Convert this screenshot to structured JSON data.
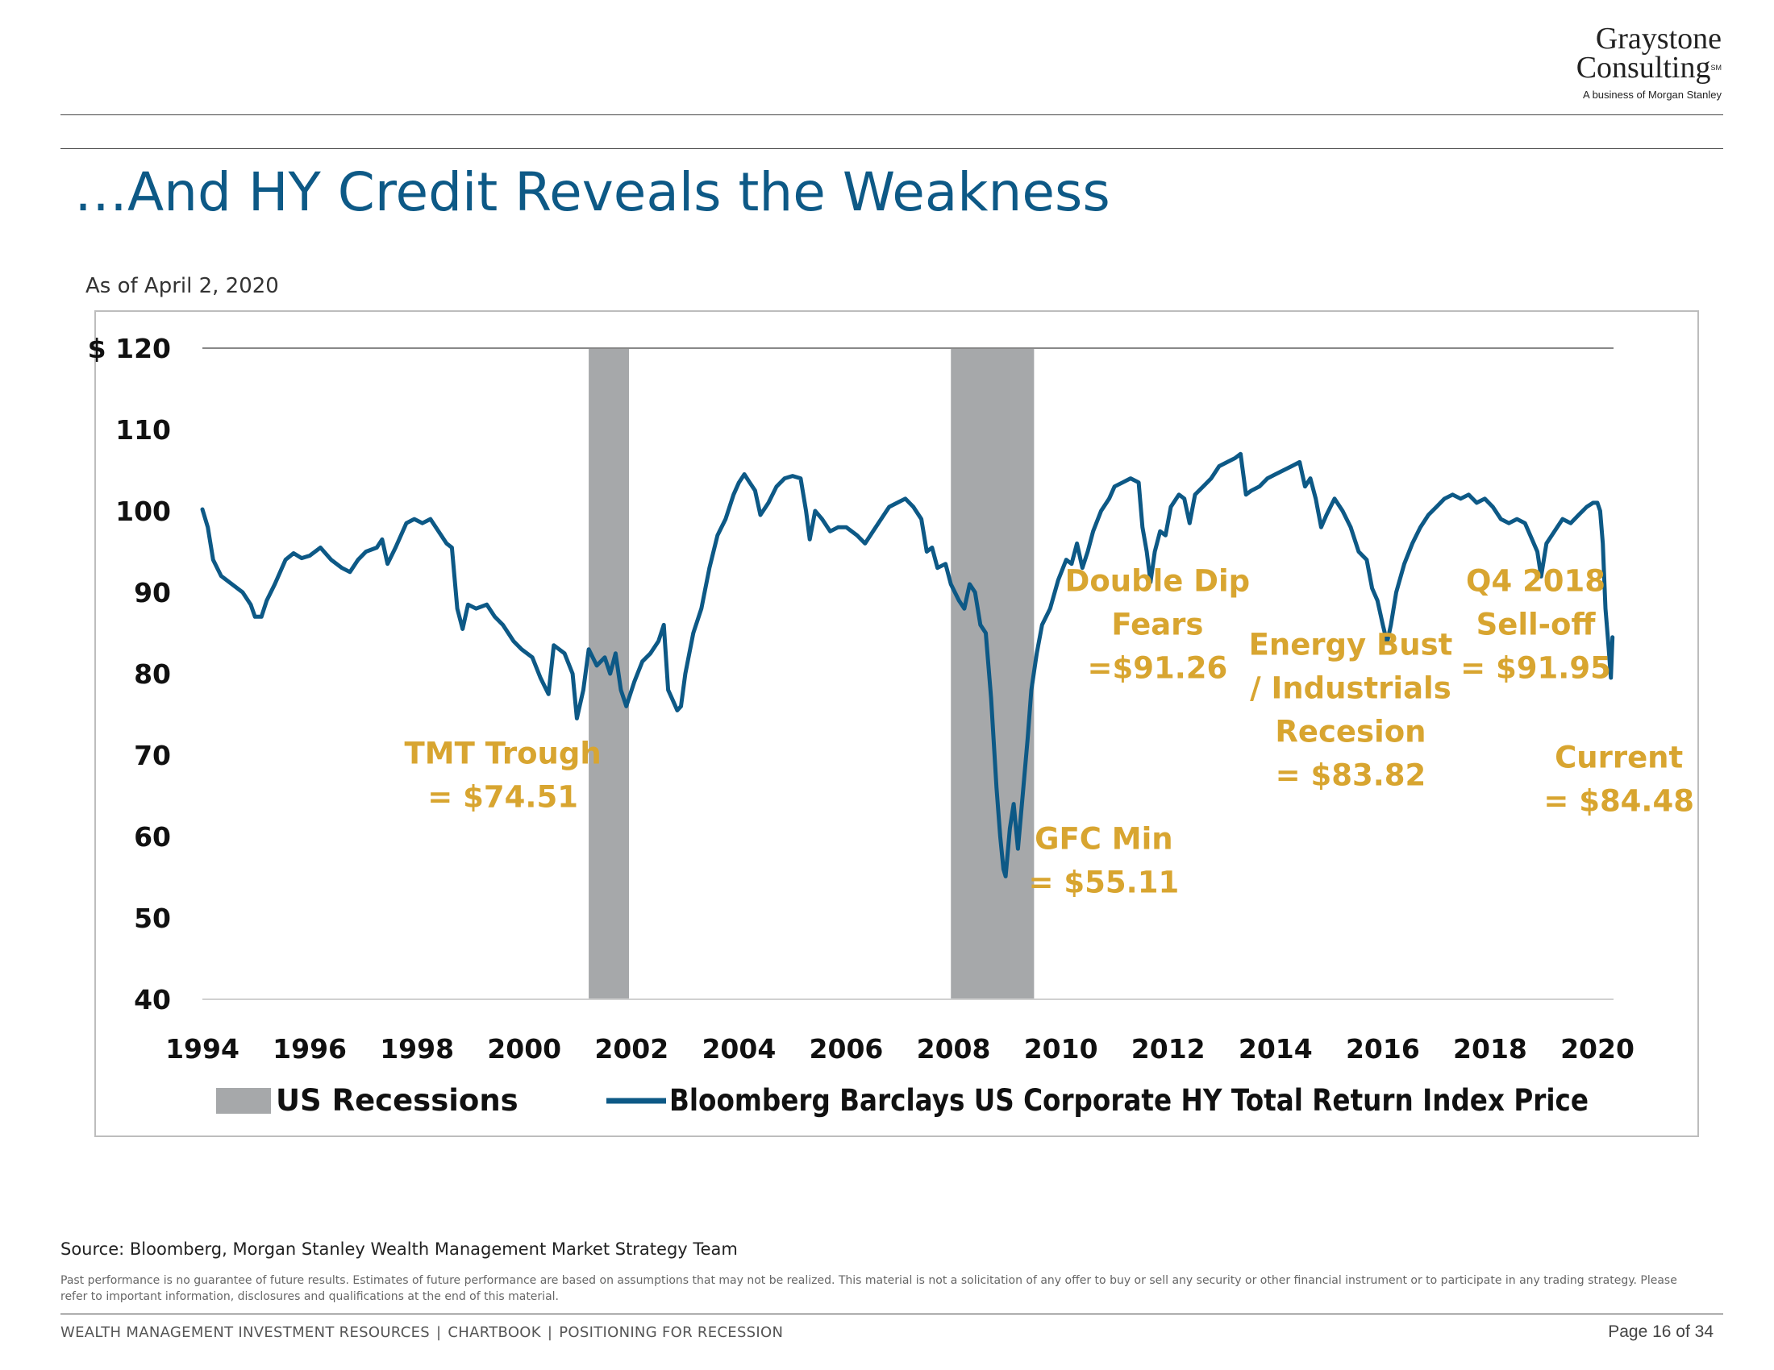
{
  "logo": {
    "line1": "Graystone",
    "line2": "Consulting",
    "mark": "SM",
    "tagline": "A business of Morgan Stanley"
  },
  "title": "…And HY Credit Reveals the Weakness",
  "as_of": "As of April 2, 2020",
  "source": "Source:  Bloomberg, Morgan Stanley Wealth Management Market Strategy Team",
  "disclaimer": "Past performance is no guarantee of future results. Estimates of future performance are based on assumptions that may not be realized. This material is not a solicitation of any offer to buy or sell any security or other financial instrument or to participate in any trading strategy. Please refer to important information, disclosures and qualifications at the end of this material.",
  "footer": {
    "part1": "WEALTH MANAGEMENT INVESTMENT RESOURCES",
    "part2": "CHARTBOOK",
    "part3": "POSITIONING FOR RECESSION",
    "separator": "|",
    "page": "Page 16 of 34"
  },
  "chart_data": {
    "type": "line",
    "ylim": [
      40,
      120
    ],
    "xlim": [
      1994,
      2020.3
    ],
    "y_ticks": [
      {
        "value": 120,
        "label": "$ 120"
      },
      {
        "value": 110,
        "label": "110"
      },
      {
        "value": 100,
        "label": "100"
      },
      {
        "value": 90,
        "label": "90"
      },
      {
        "value": 80,
        "label": "80"
      },
      {
        "value": 70,
        "label": "70"
      },
      {
        "value": 60,
        "label": "60"
      },
      {
        "value": 50,
        "label": "50"
      },
      {
        "value": 40,
        "label": "40"
      }
    ],
    "x_ticks": [
      {
        "value": 1994,
        "label": "1994"
      },
      {
        "value": 1996,
        "label": "1996"
      },
      {
        "value": 1998,
        "label": "1998"
      },
      {
        "value": 2000,
        "label": "2000"
      },
      {
        "value": 2002,
        "label": "2002"
      },
      {
        "value": 2004,
        "label": "2004"
      },
      {
        "value": 2006,
        "label": "2006"
      },
      {
        "value": 2008,
        "label": "2008"
      },
      {
        "value": 2010,
        "label": "2010"
      },
      {
        "value": 2012,
        "label": "2012"
      },
      {
        "value": 2014,
        "label": "2014"
      },
      {
        "value": 2016,
        "label": "2016"
      },
      {
        "value": 2018,
        "label": "2018"
      },
      {
        "value": 2020,
        "label": "2020"
      }
    ],
    "grid": false,
    "legend_position": "bottom",
    "colors": {
      "line": "#0d5986",
      "recession": "#a6a8aa",
      "annotation": "#d8a530"
    },
    "recessions": [
      {
        "start": 2001.2,
        "end": 2001.95
      },
      {
        "start": 2007.95,
        "end": 2009.5
      }
    ],
    "legend": {
      "recession_label": "US Recessions",
      "series_label": "Bloomberg Barclays US Corporate HY Total Return Index Price"
    },
    "series": [
      {
        "name": "Bloomberg Barclays US Corporate HY Total Return Index Price",
        "points": [
          [
            1994.0,
            100.2
          ],
          [
            1994.1,
            98.0
          ],
          [
            1994.2,
            94.0
          ],
          [
            1994.35,
            92.0
          ],
          [
            1994.55,
            91.0
          ],
          [
            1994.75,
            90.0
          ],
          [
            1994.9,
            88.5
          ],
          [
            1994.98,
            87.0
          ],
          [
            1995.1,
            87.0
          ],
          [
            1995.2,
            89.0
          ],
          [
            1995.35,
            91.0
          ],
          [
            1995.55,
            94.0
          ],
          [
            1995.7,
            94.8
          ],
          [
            1995.85,
            94.2
          ],
          [
            1996.0,
            94.5
          ],
          [
            1996.2,
            95.5
          ],
          [
            1996.4,
            94.0
          ],
          [
            1996.6,
            93.0
          ],
          [
            1996.75,
            92.5
          ],
          [
            1996.9,
            94.0
          ],
          [
            1997.05,
            95.0
          ],
          [
            1997.25,
            95.5
          ],
          [
            1997.35,
            96.5
          ],
          [
            1997.45,
            93.5
          ],
          [
            1997.6,
            95.5
          ],
          [
            1997.8,
            98.5
          ],
          [
            1997.95,
            99.0
          ],
          [
            1998.1,
            98.5
          ],
          [
            1998.25,
            99.0
          ],
          [
            1998.4,
            97.5
          ],
          [
            1998.55,
            96.0
          ],
          [
            1998.65,
            95.5
          ],
          [
            1998.75,
            88.0
          ],
          [
            1998.85,
            85.5
          ],
          [
            1998.95,
            88.5
          ],
          [
            1999.1,
            88.0
          ],
          [
            1999.3,
            88.5
          ],
          [
            1999.45,
            87.0
          ],
          [
            1999.6,
            86.0
          ],
          [
            1999.8,
            84.0
          ],
          [
            1999.95,
            83.0
          ],
          [
            2000.15,
            82.0
          ],
          [
            2000.3,
            79.5
          ],
          [
            2000.45,
            77.5
          ],
          [
            2000.55,
            83.5
          ],
          [
            2000.75,
            82.5
          ],
          [
            2000.9,
            80.0
          ],
          [
            2000.98,
            74.51
          ],
          [
            2001.1,
            78.0
          ],
          [
            2001.2,
            83.0
          ],
          [
            2001.35,
            81.0
          ],
          [
            2001.5,
            82.0
          ],
          [
            2001.6,
            80.0
          ],
          [
            2001.7,
            82.5
          ],
          [
            2001.8,
            78.0
          ],
          [
            2001.9,
            76.0
          ],
          [
            2002.05,
            79.0
          ],
          [
            2002.2,
            81.5
          ],
          [
            2002.35,
            82.5
          ],
          [
            2002.5,
            84.0
          ],
          [
            2002.6,
            86.0
          ],
          [
            2002.68,
            78.0
          ],
          [
            2002.75,
            77.0
          ],
          [
            2002.85,
            75.5
          ],
          [
            2002.92,
            76.0
          ],
          [
            2003.0,
            80.0
          ],
          [
            2003.15,
            85.0
          ],
          [
            2003.3,
            88.0
          ],
          [
            2003.45,
            93.0
          ],
          [
            2003.6,
            97.0
          ],
          [
            2003.75,
            99.0
          ],
          [
            2003.9,
            102.0
          ],
          [
            2004.0,
            103.5
          ],
          [
            2004.1,
            104.5
          ],
          [
            2004.2,
            103.5
          ],
          [
            2004.3,
            102.5
          ],
          [
            2004.4,
            99.5
          ],
          [
            2004.55,
            101.0
          ],
          [
            2004.7,
            103.0
          ],
          [
            2004.85,
            104.0
          ],
          [
            2005.0,
            104.3
          ],
          [
            2005.15,
            104.0
          ],
          [
            2005.25,
            100.0
          ],
          [
            2005.32,
            96.5
          ],
          [
            2005.42,
            100.0
          ],
          [
            2005.55,
            99.0
          ],
          [
            2005.7,
            97.5
          ],
          [
            2005.85,
            98.0
          ],
          [
            2006.0,
            98.0
          ],
          [
            2006.2,
            97.0
          ],
          [
            2006.35,
            96.0
          ],
          [
            2006.5,
            97.5
          ],
          [
            2006.65,
            99.0
          ],
          [
            2006.8,
            100.5
          ],
          [
            2006.95,
            101.0
          ],
          [
            2007.1,
            101.5
          ],
          [
            2007.25,
            100.5
          ],
          [
            2007.4,
            99.0
          ],
          [
            2007.5,
            95.0
          ],
          [
            2007.6,
            95.5
          ],
          [
            2007.7,
            93.0
          ],
          [
            2007.85,
            93.5
          ],
          [
            2007.95,
            91.0
          ],
          [
            2008.1,
            89.0
          ],
          [
            2008.2,
            88.0
          ],
          [
            2008.3,
            91.0
          ],
          [
            2008.4,
            90.0
          ],
          [
            2008.5,
            86.0
          ],
          [
            2008.6,
            85.0
          ],
          [
            2008.7,
            77.0
          ],
          [
            2008.8,
            66.0
          ],
          [
            2008.87,
            60.0
          ],
          [
            2008.93,
            56.0
          ],
          [
            2008.97,
            55.11
          ],
          [
            2009.05,
            61.0
          ],
          [
            2009.12,
            64.0
          ],
          [
            2009.2,
            58.5
          ],
          [
            2009.3,
            66.0
          ],
          [
            2009.38,
            72.0
          ],
          [
            2009.45,
            78.0
          ],
          [
            2009.55,
            82.5
          ],
          [
            2009.65,
            86.0
          ],
          [
            2009.8,
            88.0
          ],
          [
            2009.95,
            91.5
          ],
          [
            2010.1,
            94.0
          ],
          [
            2010.2,
            93.5
          ],
          [
            2010.3,
            96.0
          ],
          [
            2010.4,
            93.0
          ],
          [
            2010.5,
            95.0
          ],
          [
            2010.6,
            97.5
          ],
          [
            2010.75,
            100.0
          ],
          [
            2010.9,
            101.5
          ],
          [
            2011.0,
            103.0
          ],
          [
            2011.15,
            103.5
          ],
          [
            2011.3,
            104.0
          ],
          [
            2011.45,
            103.5
          ],
          [
            2011.52,
            98.0
          ],
          [
            2011.6,
            95.0
          ],
          [
            2011.67,
            91.26
          ],
          [
            2011.75,
            95.0
          ],
          [
            2011.85,
            97.5
          ],
          [
            2011.95,
            97.0
          ],
          [
            2012.05,
            100.5
          ],
          [
            2012.2,
            102.0
          ],
          [
            2012.3,
            101.5
          ],
          [
            2012.4,
            98.5
          ],
          [
            2012.5,
            102.0
          ],
          [
            2012.65,
            103.0
          ],
          [
            2012.8,
            104.0
          ],
          [
            2012.95,
            105.5
          ],
          [
            2013.1,
            106.0
          ],
          [
            2013.25,
            106.5
          ],
          [
            2013.35,
            107.0
          ],
          [
            2013.45,
            102.0
          ],
          [
            2013.55,
            102.5
          ],
          [
            2013.7,
            103.0
          ],
          [
            2013.85,
            104.0
          ],
          [
            2014.0,
            104.5
          ],
          [
            2014.15,
            105.0
          ],
          [
            2014.3,
            105.5
          ],
          [
            2014.45,
            106.0
          ],
          [
            2014.55,
            103.0
          ],
          [
            2014.65,
            104.0
          ],
          [
            2014.75,
            101.5
          ],
          [
            2014.85,
            98.0
          ],
          [
            2014.95,
            99.5
          ],
          [
            2015.1,
            101.5
          ],
          [
            2015.25,
            100.0
          ],
          [
            2015.4,
            98.0
          ],
          [
            2015.55,
            95.0
          ],
          [
            2015.7,
            94.0
          ],
          [
            2015.8,
            90.5
          ],
          [
            2015.9,
            89.0
          ],
          [
            2016.0,
            86.0
          ],
          [
            2016.08,
            83.82
          ],
          [
            2016.15,
            86.0
          ],
          [
            2016.25,
            90.0
          ],
          [
            2016.4,
            93.5
          ],
          [
            2016.55,
            96.0
          ],
          [
            2016.7,
            98.0
          ],
          [
            2016.85,
            99.5
          ],
          [
            2017.0,
            100.5
          ],
          [
            2017.15,
            101.5
          ],
          [
            2017.3,
            102.0
          ],
          [
            2017.45,
            101.5
          ],
          [
            2017.6,
            102.0
          ],
          [
            2017.75,
            101.0
          ],
          [
            2017.9,
            101.5
          ],
          [
            2018.05,
            100.5
          ],
          [
            2018.2,
            99.0
          ],
          [
            2018.35,
            98.5
          ],
          [
            2018.5,
            99.0
          ],
          [
            2018.65,
            98.5
          ],
          [
            2018.78,
            96.5
          ],
          [
            2018.88,
            95.0
          ],
          [
            2018.95,
            91.95
          ],
          [
            2019.05,
            96.0
          ],
          [
            2019.2,
            97.5
          ],
          [
            2019.35,
            99.0
          ],
          [
            2019.5,
            98.5
          ],
          [
            2019.65,
            99.5
          ],
          [
            2019.8,
            100.5
          ],
          [
            2019.92,
            101.0
          ],
          [
            2020.0,
            101.0
          ],
          [
            2020.05,
            100.0
          ],
          [
            2020.1,
            96.0
          ],
          [
            2020.15,
            88.0
          ],
          [
            2020.2,
            84.0
          ],
          [
            2020.25,
            79.5
          ],
          [
            2020.28,
            84.48
          ]
        ]
      }
    ],
    "annotations": [
      {
        "lines": [
          "TMT Trough",
          "= $74.51"
        ],
        "x": 1999.6,
        "y": 67.5
      },
      {
        "lines": [
          "GFC Min",
          "= $55.11"
        ],
        "x": 2010.8,
        "y": 57.0
      },
      {
        "lines": [
          "Double Dip",
          "Fears",
          "=$91.26"
        ],
        "x": 2011.8,
        "y": 86.0
      },
      {
        "lines": [
          "Energy Bust",
          "/ Industrials",
          "Recesion",
          "= $83.82"
        ],
        "x": 2015.4,
        "y": 75.5
      },
      {
        "lines": [
          "Q4 2018",
          "Sell-off",
          "= $91.95"
        ],
        "x": 2018.85,
        "y": 86.0
      },
      {
        "lines": [
          "Current",
          "= $84.48"
        ],
        "x": 2020.4,
        "y": 67.0
      }
    ]
  }
}
